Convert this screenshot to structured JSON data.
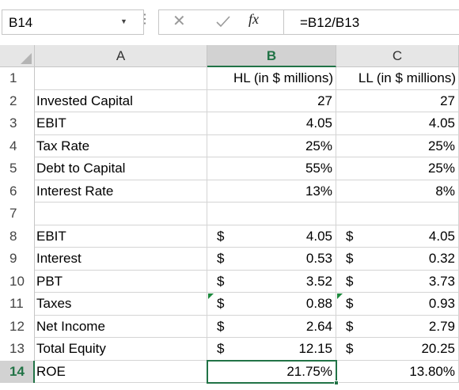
{
  "name_box": {
    "value": "B14",
    "dropdown_icon": "chevron-down-icon"
  },
  "formula_bar": {
    "more_icon": "vertical-dots-icon",
    "cancel_icon": "close-icon",
    "enter_icon": "checkmark-icon",
    "function_label": "fx",
    "formula": "=B12/B13"
  },
  "columns": [
    "A",
    "B",
    "C"
  ],
  "rows": [
    "1",
    "2",
    "3",
    "4",
    "5",
    "6",
    "7",
    "8",
    "9",
    "10",
    "11",
    "12",
    "13",
    "14"
  ],
  "cells": {
    "B1": "HL (in $ millions)",
    "C1": "LL (in $ millions)",
    "A2": "Invested Capital",
    "B2": "27",
    "C2": "27",
    "A3": "EBIT",
    "B3": "4.05",
    "C3": "4.05",
    "A4": "Tax Rate",
    "B4": "25%",
    "C4": "25%",
    "A5": "Debt to Capital",
    "B5": "55%",
    "C5": "25%",
    "A6": "Interest Rate",
    "B6": "13%",
    "C6": "8%",
    "A8": "EBIT",
    "B8": "4.05",
    "C8": "4.05",
    "A9": "Interest",
    "B9": "0.53",
    "C9": "0.32",
    "A10": "PBT",
    "B10": "3.52",
    "C10": "3.73",
    "A11": "Taxes",
    "B11": "0.88",
    "C11": "0.93",
    "A12": "Net Income",
    "B12": "2.64",
    "C12": "2.79",
    "A13": "Total Equity",
    "B13": "12.15",
    "C13": "20.25",
    "A14": "ROE",
    "B14": "21.75%",
    "C14": "13.80%"
  },
  "currency_symbol": "$",
  "accent_color": "#217346",
  "active_cell": "B14"
}
